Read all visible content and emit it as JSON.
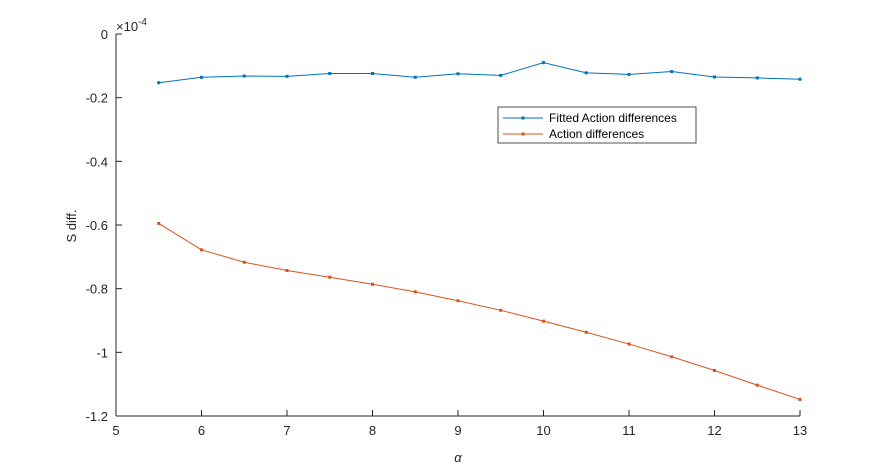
{
  "chart_data": {
    "type": "line",
    "xlabel": "α",
    "ylabel": "S diff.",
    "exponent_multiplier": "×",
    "exponent_base": "10",
    "exponent_power": "-4",
    "xlim": [
      5,
      13
    ],
    "ylim": [
      -1.2,
      0
    ],
    "xticks": [
      5,
      6,
      7,
      8,
      9,
      10,
      11,
      12,
      13
    ],
    "yticks": [
      0,
      -0.2,
      -0.4,
      -0.6,
      -0.8,
      -1,
      -1.2
    ],
    "ytick_labels": [
      "0",
      "-0.2",
      "-0.4",
      "-0.6",
      "-0.8",
      "-1",
      "-1.2"
    ],
    "grid": false,
    "legend_position": "top-right",
    "x": [
      5.5,
      6,
      6.5,
      7,
      7.5,
      8,
      8.5,
      9,
      9.5,
      10,
      10.5,
      11,
      11.5,
      12,
      12.5,
      13
    ],
    "series": [
      {
        "name": "Fitted Action differences",
        "color": "#0072BD",
        "values": [
          -0.153,
          -0.136,
          -0.132,
          -0.133,
          -0.124,
          -0.124,
          -0.136,
          -0.125,
          -0.13,
          -0.09,
          -0.122,
          -0.127,
          -0.118,
          -0.135,
          -0.138,
          -0.142
        ]
      },
      {
        "name": "Action differences",
        "color": "#D95319",
        "values": [
          -0.595,
          -0.678,
          -0.717,
          -0.743,
          -0.764,
          -0.786,
          -0.81,
          -0.838,
          -0.868,
          -0.902,
          -0.937,
          -0.974,
          -1.014,
          -1.057,
          -1.103,
          -1.148
        ]
      }
    ]
  }
}
